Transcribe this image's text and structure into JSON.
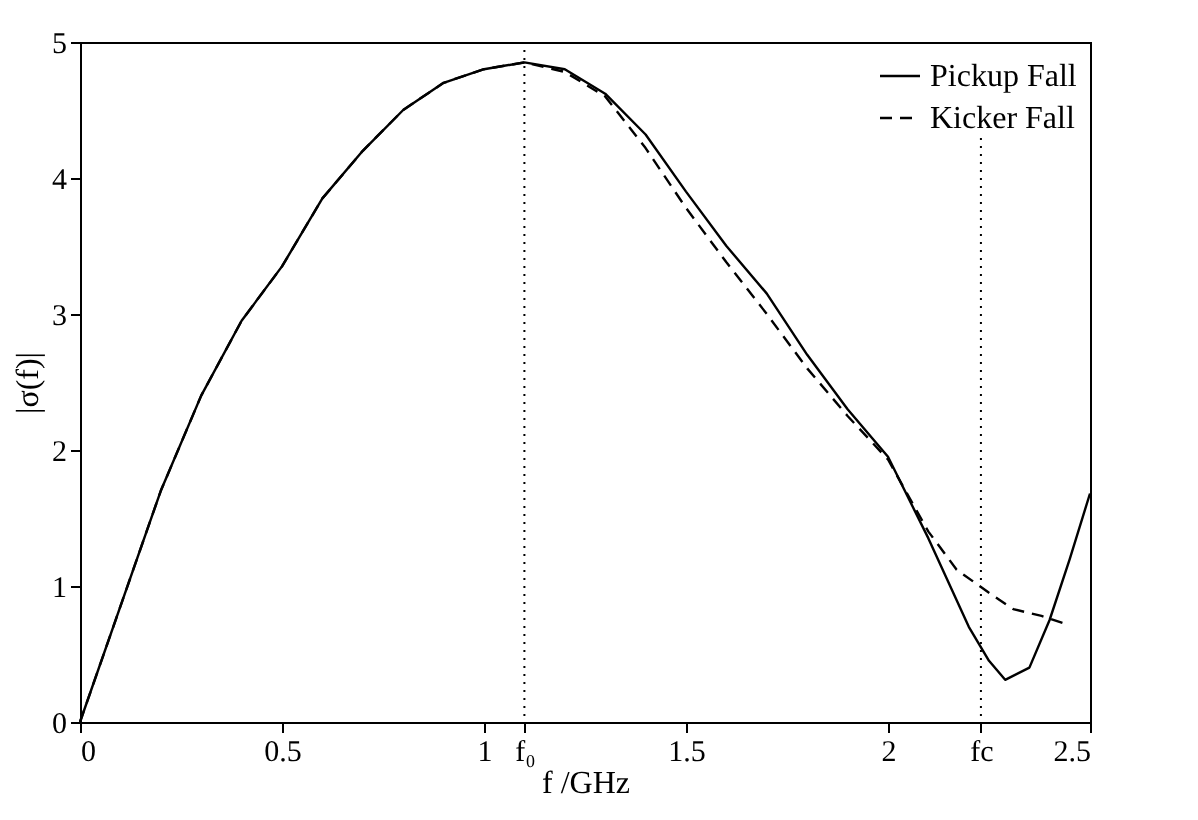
{
  "chart_data": {
    "type": "line",
    "xlabel": "f /GHz",
    "ylabel": "|σ(f)|",
    "xlim": [
      0,
      2.5
    ],
    "ylim": [
      0,
      5
    ],
    "xticks": [
      0,
      0.5,
      1,
      {
        "value": 1.1,
        "label": "f₀"
      },
      1.5,
      2,
      {
        "value": 2.23,
        "label": "fc"
      },
      2.5
    ],
    "yticks": [
      0,
      1,
      2,
      3,
      4,
      5
    ],
    "grid": false,
    "legend": "top right",
    "marker": "none",
    "series": [
      {
        "name": "Pickup Fall",
        "color": "#000000",
        "line_style": "solid",
        "x": [
          0,
          0.1,
          0.2,
          0.3,
          0.4,
          0.5,
          0.6,
          0.7,
          0.8,
          0.9,
          1.0,
          1.1,
          1.2,
          1.3,
          1.4,
          1.5,
          1.6,
          1.7,
          1.8,
          1.9,
          2.0,
          2.1,
          2.2,
          2.25,
          2.29,
          2.35,
          2.4,
          2.45,
          2.5
        ],
        "values": [
          0,
          0.85,
          1.7,
          2.4,
          2.95,
          3.35,
          3.85,
          4.2,
          4.5,
          4.7,
          4.8,
          4.85,
          4.8,
          4.62,
          4.32,
          3.9,
          3.5,
          3.15,
          2.7,
          2.3,
          1.95,
          1.35,
          0.7,
          0.45,
          0.31,
          0.4,
          0.75,
          1.2,
          1.68
        ]
      },
      {
        "name": "Kicker Fall",
        "color": "#000000",
        "line_style": "dashed",
        "x": [
          0,
          0.1,
          0.2,
          0.3,
          0.4,
          0.5,
          0.6,
          0.7,
          0.8,
          0.9,
          1.0,
          1.1,
          1.2,
          1.3,
          1.4,
          1.5,
          1.6,
          1.7,
          1.8,
          1.9,
          2.0,
          2.1,
          2.17,
          2.25,
          2.31,
          2.38,
          2.44
        ],
        "values": [
          0,
          0.85,
          1.7,
          2.4,
          2.95,
          3.35,
          3.85,
          4.2,
          4.5,
          4.7,
          4.8,
          4.85,
          4.78,
          4.6,
          4.22,
          3.78,
          3.38,
          3.0,
          2.6,
          2.25,
          1.93,
          1.4,
          1.12,
          0.95,
          0.83,
          0.78,
          0.72
        ]
      }
    ],
    "ref_lines": [
      {
        "axis": "x",
        "value": 1.1,
        "line_style": "dotted"
      },
      {
        "axis": "x",
        "value": 2.23,
        "line_style": "dotted"
      }
    ]
  }
}
